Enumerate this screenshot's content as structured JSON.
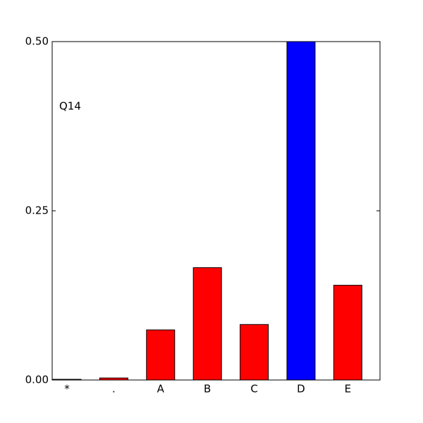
{
  "chart_data": {
    "type": "bar",
    "annotation": "Q14",
    "categories": [
      "*",
      ".",
      "A",
      "B",
      "C",
      "D",
      "E"
    ],
    "values": [
      0.001,
      0.003,
      0.074,
      0.166,
      0.082,
      0.5,
      0.14
    ],
    "colors": [
      "#ff0000",
      "#ff0000",
      "#ff0000",
      "#ff0000",
      "#ff0000",
      "#0000ff",
      "#ff0000"
    ],
    "ylim": [
      0,
      0.5
    ],
    "yticks": [
      {
        "value": 0,
        "label": "0.00"
      },
      {
        "value": 0.25,
        "label": "0.25"
      },
      {
        "value": 0.5,
        "label": "0.50"
      }
    ]
  }
}
